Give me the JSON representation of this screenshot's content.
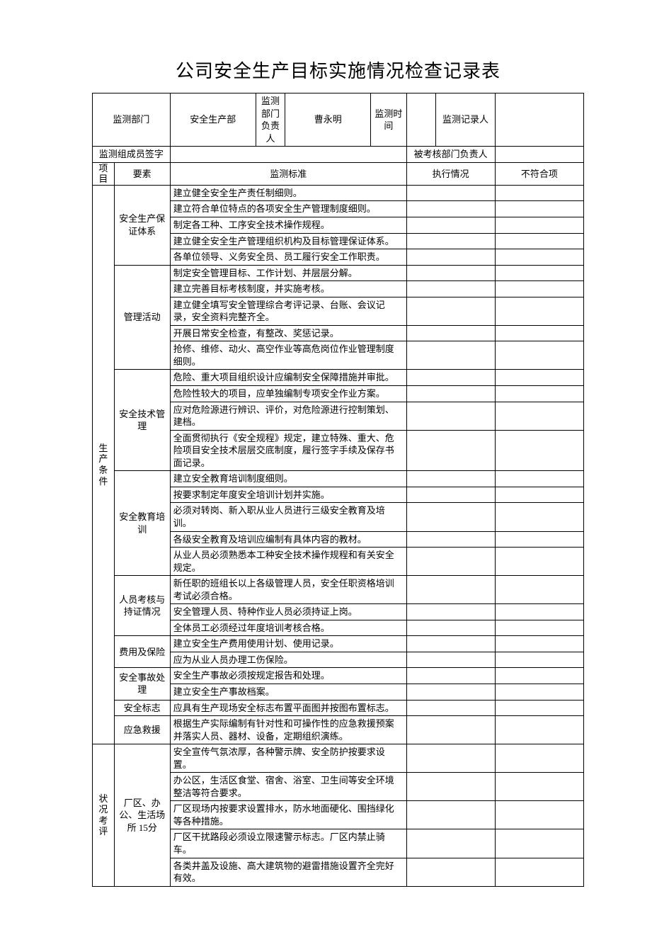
{
  "title": "公司安全生产目标实施情况检查记录表",
  "header": {
    "dept_label": "监测部门",
    "dept_value": "安全生产部",
    "leader_label": "监测部门负责人",
    "leader_value": "曹永明",
    "time_label": "监测时间",
    "time_value": "",
    "recorder_label": "监测记录人",
    "recorder_value": "",
    "team_sign_label": "监测组成员签字",
    "team_sign_value": "",
    "assessed_dept_label": "被考核部门负责人",
    "assessed_dept_value": ""
  },
  "columns": {
    "project": "项目",
    "element": "要素",
    "standard": "监测标准",
    "status": "执行情况",
    "nonconform": "不符合项"
  },
  "sections": [
    {
      "project": "生产条件",
      "groups": [
        {
          "element": "安全生产保证体系",
          "items": [
            "建立健全安全生产责任制细则。",
            "建立符合单位特点的各项安全生产管理制度细则。",
            "制定各工种、工序安全技术操作规程。",
            "建立健全安全生产管理组织机构及目标管理保证体系。",
            "各单位领导、义务安全员、员工履行安全工作职责。"
          ]
        },
        {
          "element": "管理活动",
          "items": [
            "制定安全管理目标、工作计划、并层层分解。",
            "建立完善目标考核制度，并实施考核。",
            "建立健全填写安全管理综合考评记录、台账、会议记录，安全资料完整齐全。",
            "开展日常安全检查，有整改、奖惩记录。",
            "抢修、维修、动火、高空作业等高危岗位作业管理制度细则。"
          ]
        },
        {
          "element": "安全技术管理",
          "items": [
            "危险、重大项目组织设计应编制安全保障措施并审批。",
            "危险性较大的项目，应单独编制专项安全作业方案。",
            "应对危险源进行辨识、评价，对危险源进行控制策划、建档。",
            "全面贯彻执行《安全规程》规定，建立特殊、重大、危险项目安全技术层层交底制度，履行签字手续及保存书面记录。"
          ]
        },
        {
          "element": "安全教育培训",
          "items": [
            "建立安全教育培训制度细则。",
            "按要求制定年度安全培训计划并实施。",
            "必须对转岗、新入职从业人员进行三级安全教育及培训。",
            "各级安全教育及培训应编制有具体内容的教材。",
            "从业人员必须熟悉本工种安全技术操作规程和有关安全规定。"
          ]
        },
        {
          "element": "人员考核与持证情况",
          "items": [
            "新任职的班组长以上各级管理人员，安全任职资格培训考试必须合格。",
            "安全管理人员、特种作业人员必须持证上岗。",
            "全体员工必须经过年度培训考核合格。"
          ]
        },
        {
          "element": "费用及保险",
          "items": [
            "建立安全生产费用使用计划、使用记录。",
            "应为从业人员办理工伤保险。"
          ]
        },
        {
          "element": "安全事故处理",
          "items": [
            "安全生产事故必须按规定报告和处理。",
            "建立安全生产事故档案。"
          ]
        },
        {
          "element": "安全标志",
          "items": [
            "应具有生产现场安全标志布置平面图并按图布置标志。"
          ]
        },
        {
          "element": "应急救援",
          "items": [
            "根据生产实际编制有针对性和可操作性的应急救援预案并落实人员、器材、设备，定期组织演练。"
          ]
        }
      ]
    },
    {
      "project": "状况考评",
      "groups": [
        {
          "element": "厂区、办公、生活场所 15分",
          "items": [
            "安全宣传气氛浓厚，各种警示牌、安全防护按要求设置。",
            "办公区，生活区食堂、宿舍、浴室、卫生间等安全环境整洁等符合要求。",
            "厂区现场内按要求设置排水，防水地面硬化、围挡绿化等各种措施。",
            "厂区干扰路段必须设立限速警示标志。厂区内禁止骑车。",
            "各类井盖及设施、高大建筑物的避雷措施设置齐全完好有效。"
          ]
        }
      ]
    }
  ],
  "style": {
    "background": "#ffffff",
    "border_color": "#000000",
    "text_color": "#000000",
    "title_fontsize": 26,
    "body_fontsize": 13,
    "font_family": "SimSun"
  }
}
